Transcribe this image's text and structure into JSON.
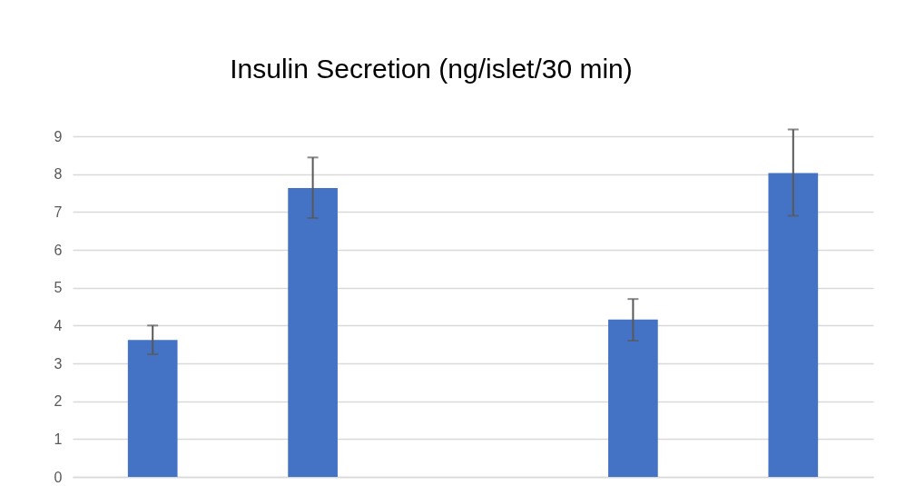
{
  "chart_data": {
    "type": "bar",
    "title": "Insulin Secretion (ng/islet/30 min)",
    "categories": [
      null,
      null,
      null,
      null,
      null
    ],
    "values": [
      3.62,
      7.63,
      null,
      4.16,
      8.03
    ],
    "errors": [
      [
        3.24,
        4.0
      ],
      [
        6.84,
        8.44
      ],
      null,
      [
        3.6,
        4.7
      ],
      [
        6.9,
        9.18
      ]
    ],
    "color": "#4472c4",
    "ylim": [
      0,
      9
    ],
    "yticks": [
      0,
      1,
      2,
      3,
      4,
      5,
      6,
      7,
      8,
      9
    ],
    "grid": "y",
    "tick_labels": "y"
  }
}
